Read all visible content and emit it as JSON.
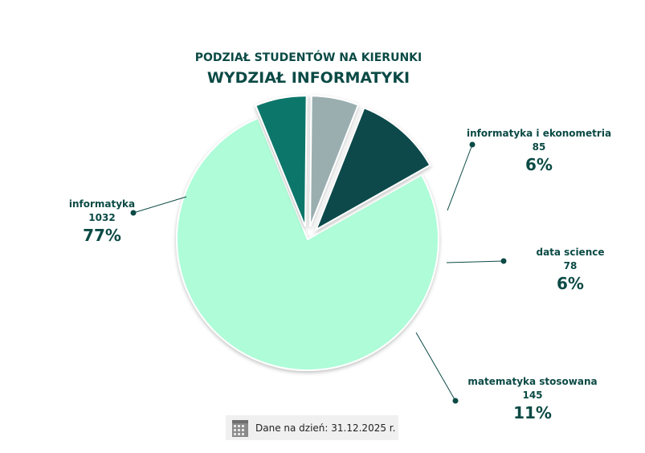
{
  "chart_data": {
    "type": "pie",
    "title": "PODZIAŁ STUDENTÓW NA KIERUNKI",
    "subtitle": "WYDZIAŁ INFORMATYKI",
    "slices": [
      {
        "label": "informatyka",
        "value": 1032,
        "percent": "77%",
        "color": "#aefcd8",
        "exploded": false
      },
      {
        "label": "informatyka i ekonometria",
        "value": 85,
        "percent": "6%",
        "color": "#08766b",
        "exploded": true
      },
      {
        "label": "data science",
        "value": 78,
        "percent": "6%",
        "color": "#9aaeb0",
        "exploded": true
      },
      {
        "label": "matematyka stosowana",
        "value": 145,
        "percent": "11%",
        "color": "#0b4a4c",
        "exploded": true
      }
    ]
  },
  "footer": {
    "icon": "calendar-icon",
    "text": "Dane na dzień: 31.12.2025 r."
  }
}
